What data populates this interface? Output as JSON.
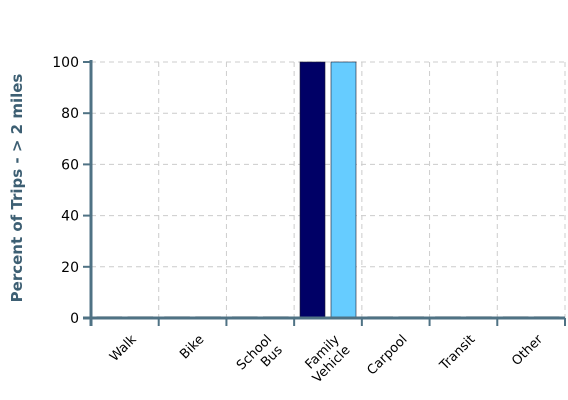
{
  "chart_data": {
    "type": "bar",
    "title": "",
    "xlabel": "",
    "ylabel": "Percent of Trips - > 2 miles",
    "ylim": [
      0,
      100
    ],
    "yticks": [
      0,
      20,
      40,
      60,
      80,
      100
    ],
    "grid": true,
    "categories": [
      [
        "Walk"
      ],
      [
        "Bike"
      ],
      [
        "School",
        "Bus"
      ],
      [
        "Family",
        "Vehicle"
      ],
      [
        "Carpool"
      ],
      [
        "Transit"
      ],
      [
        "Other"
      ]
    ],
    "series": [
      {
        "values": [
          0.5,
          0.5,
          0.5,
          100,
          0.5,
          0.5,
          0.5
        ]
      },
      {
        "values": [
          0.5,
          0.5,
          0.5,
          100,
          0.5,
          0.5,
          0.5
        ]
      }
    ],
    "colors": {
      "series_0": "#000066",
      "series_1": "#66ccff",
      "axis": "#4f7284",
      "grid": "#cccccc",
      "ylabel": "#3d5f73"
    }
  }
}
